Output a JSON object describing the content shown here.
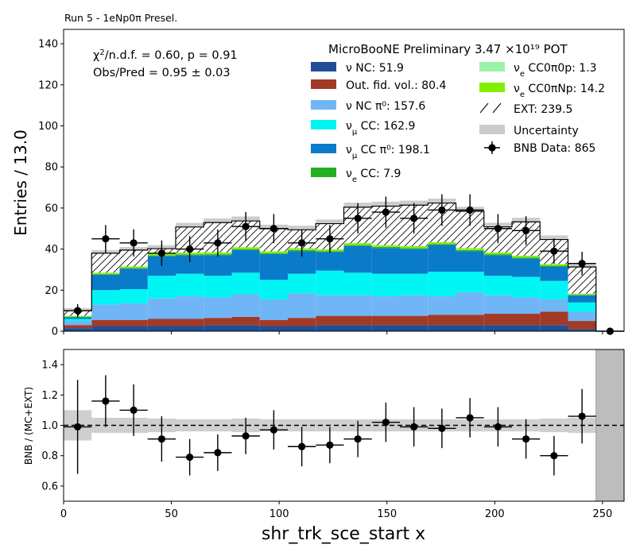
{
  "run_label": "Run 5 - 1eNp0π Presel.",
  "chart_data": [
    {
      "type": "bar",
      "stacked": true,
      "title": "",
      "xlabel": "shr_trk_sce_start x",
      "ylabel": "Entries / 13.0",
      "xlim": [
        0,
        260
      ],
      "ylim": [
        0,
        147
      ],
      "xticks": [
        0,
        50,
        100,
        150,
        200,
        250
      ],
      "yticks": [
        0,
        20,
        40,
        60,
        80,
        100,
        120,
        140
      ],
      "bin_edges": [
        0,
        13,
        26,
        39,
        52,
        65,
        78,
        91,
        104,
        117,
        130,
        143,
        156,
        169,
        182,
        195,
        208,
        221,
        234,
        247,
        260
      ],
      "annotations": {
        "experiment": "MicroBooNE Preliminary 3.47 ×10¹⁹ POT",
        "chi2_prefix": "χ",
        "chi2_sup": "2",
        "chi2_suffix": "/n.d.f. = 0.60, p = 0.91",
        "obs_pred": "Obs/Pred = 0.95 ± 0.03"
      },
      "legend_placement": "top-right",
      "series": [
        {
          "key": "nu_nc",
          "color": "#1f4e96",
          "legend_sym": "ν",
          "legend_text": " NC: 51.9",
          "values": [
            1.5,
            2.5,
            2.5,
            2.5,
            2.5,
            3,
            3,
            2.5,
            2.5,
            3,
            3,
            3,
            3,
            3,
            3,
            3,
            3,
            3,
            1,
            0
          ]
        },
        {
          "key": "out_fid",
          "color": "#a33a26",
          "legend_sym": "",
          "legend_text": "Out. fid. vol.: 80.4",
          "values": [
            1.5,
            3,
            3,
            3.5,
            3.5,
            3.5,
            4,
            3,
            4,
            4.5,
            4.5,
            4.5,
            4.5,
            5,
            5,
            5.5,
            5.5,
            6.5,
            4,
            0
          ]
        },
        {
          "key": "nu_nc_pi0",
          "color": "#70b5f5",
          "legend_sym": "ν",
          "legend_text": " NC π⁰: 157.6",
          "values": [
            2,
            7.5,
            8,
            10,
            11,
            10,
            11,
            10,
            12,
            10,
            10,
            9.5,
            10,
            9,
            11,
            9,
            8,
            6,
            4.5,
            0
          ]
        },
        {
          "key": "numu_cc",
          "color": "#00f5f5",
          "legend_sym": "ν",
          "legend_sub": "μ",
          "legend_text": " CC: 162.9",
          "values": [
            1,
            7,
            7,
            11,
            11,
            10.5,
            10.5,
            9.5,
            9.5,
            12,
            11,
            11,
            10.5,
            12,
            10,
            9.5,
            10,
            9,
            4.5,
            0
          ]
        },
        {
          "key": "numu_cc_pi0",
          "color": "#0a7bc8",
          "legend_sym": "ν",
          "legend_sub": "μ",
          "legend_text": " CC π⁰: 198.1",
          "values": [
            0.8,
            7.5,
            10,
            9.5,
            9,
            10,
            11,
            12.5,
            11,
            9,
            13,
            12.5,
            12,
            13,
            10,
            10,
            9,
            7,
            3.5,
            0
          ]
        },
        {
          "key": "nue_cc",
          "color": "#22b022",
          "legend_sym": "ν",
          "legend_sub": "e",
          "legend_text": " CC: 7.9",
          "values": [
            0.2,
            0.3,
            0.3,
            0.4,
            0.4,
            0.5,
            0.5,
            0.5,
            0.5,
            0.5,
            0.5,
            0.5,
            0.5,
            0.5,
            0.5,
            0.5,
            0.4,
            0.4,
            0.2,
            0
          ]
        },
        {
          "key": "nue_cc0pi0p",
          "color": "#98f5a8",
          "legend_sym": "ν",
          "legend_sub": "e",
          "legend_text": " CC0π0p: 1.3",
          "values": [
            0.05,
            0.05,
            0.05,
            0.05,
            0.05,
            0.1,
            0.1,
            0.1,
            0.1,
            0.1,
            0.1,
            0.1,
            0.1,
            0.1,
            0.1,
            0.05,
            0.05,
            0.05,
            0,
            0
          ]
        },
        {
          "key": "nue_cc0pinp",
          "color": "#80f000",
          "legend_sym": "ν",
          "legend_sub": "e",
          "legend_text": " CC0πNp: 14.2",
          "values": [
            0.45,
            0.65,
            0.65,
            0.75,
            0.8,
            0.8,
            0.8,
            0.8,
            0.8,
            0.8,
            0.8,
            0.8,
            0.8,
            0.8,
            0.8,
            0.8,
            0.8,
            0.7,
            0.6,
            0
          ]
        },
        {
          "key": "ext",
          "color": "hatch",
          "legend_sym": "",
          "legend_text": "EXT: 239.5",
          "values": [
            2.5,
            9.5,
            8,
            2.5,
            12.5,
            14.5,
            12.8,
            11,
            9,
            12.5,
            17.5,
            19,
            20,
            19,
            18,
            12.5,
            16.5,
            12,
            13,
            0
          ]
        }
      ],
      "uncertainty": {
        "color": "#cccccc",
        "legend_text": "Uncertainty",
        "half_width": [
          1.2,
          1.5,
          1.5,
          1.7,
          2,
          2,
          2.2,
          2,
          2,
          2,
          2.2,
          2.2,
          2.2,
          2.2,
          2.2,
          2,
          2,
          2,
          1.5,
          0
        ]
      },
      "data": {
        "legend_text": "BNB Data: 865",
        "x": [
          6.5,
          19.5,
          32.5,
          45.5,
          58.5,
          71.5,
          84.5,
          97.5,
          110.5,
          123.5,
          136.5,
          149.5,
          162.5,
          175.5,
          188.5,
          201.5,
          214.5,
          227.5,
          240.5,
          253.5
        ],
        "y": [
          10,
          45,
          43,
          38,
          40,
          43,
          51,
          50,
          43,
          45,
          55,
          58,
          55,
          59,
          59,
          50,
          49,
          39,
          33,
          0
        ],
        "yerr": [
          3.2,
          6.7,
          6.6,
          6.2,
          6.3,
          6.6,
          7.1,
          7.1,
          6.6,
          6.7,
          7.4,
          7.6,
          7.4,
          7.7,
          7.7,
          7.1,
          7.0,
          6.2,
          5.7,
          0
        ]
      }
    },
    {
      "type": "scatter",
      "xlabel": "shr_trk_sce_start x",
      "ylabel": "BNB / (MC+EXT)",
      "xlim": [
        0,
        260
      ],
      "ylim": [
        0.5,
        1.5
      ],
      "xticks": [
        0,
        50,
        100,
        150,
        200,
        250
      ],
      "yticks": [
        0.6,
        0.8,
        1.0,
        1.2,
        1.4
      ],
      "reference_line": 1.0,
      "band_half_width": [
        0.1,
        0.05,
        0.05,
        0.045,
        0.04,
        0.04,
        0.045,
        0.04,
        0.04,
        0.04,
        0.04,
        0.04,
        0.04,
        0.04,
        0.04,
        0.04,
        0.04,
        0.045,
        0.05,
        0.5
      ],
      "x": [
        6.5,
        19.5,
        32.5,
        45.5,
        58.5,
        71.5,
        84.5,
        97.5,
        110.5,
        123.5,
        136.5,
        149.5,
        162.5,
        175.5,
        188.5,
        201.5,
        214.5,
        227.5,
        240.5
      ],
      "y": [
        0.99,
        1.16,
        1.1,
        0.91,
        0.79,
        0.82,
        0.93,
        0.97,
        0.86,
        0.87,
        0.91,
        1.02,
        0.99,
        0.98,
        1.05,
        0.99,
        0.91,
        0.8,
        1.06
      ],
      "yerr": [
        0.31,
        0.17,
        0.17,
        0.15,
        0.12,
        0.12,
        0.12,
        0.13,
        0.13,
        0.12,
        0.12,
        0.13,
        0.13,
        0.13,
        0.13,
        0.13,
        0.13,
        0.13,
        0.18
      ]
    }
  ]
}
